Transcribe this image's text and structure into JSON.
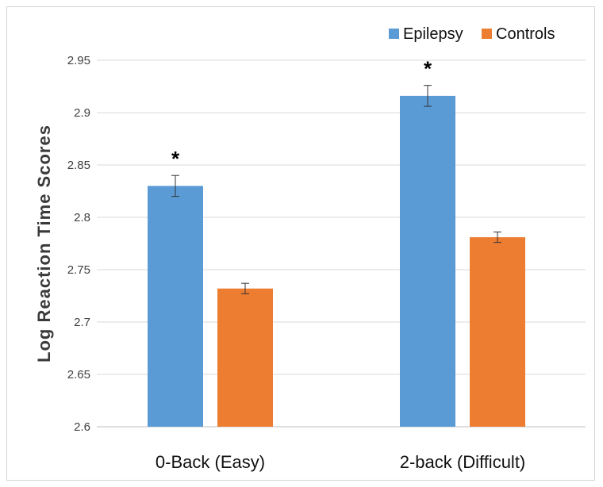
{
  "chart_data": {
    "type": "bar",
    "ylabel": "Log Reaction Time Scores",
    "xlabel": "",
    "ylim": [
      2.6,
      2.95
    ],
    "yticks": [
      "2.6",
      "2.65",
      "2.7",
      "2.75",
      "2.8",
      "2.85",
      "2.9",
      "2.95"
    ],
    "grid": true,
    "legend_position": "top-right",
    "categories": [
      "0-Back (Easy)",
      "2-back (Difficult)"
    ],
    "series": [
      {
        "name": "Epilepsy",
        "color": "#5B9BD5",
        "values": [
          2.83,
          2.916
        ],
        "errors": [
          0.01,
          0.01
        ],
        "annotations": [
          "*",
          "*"
        ]
      },
      {
        "name": "Controls",
        "color": "#ED7D31",
        "values": [
          2.732,
          2.781
        ],
        "errors": [
          0.005,
          0.005
        ],
        "annotations": [
          "",
          ""
        ]
      }
    ]
  }
}
